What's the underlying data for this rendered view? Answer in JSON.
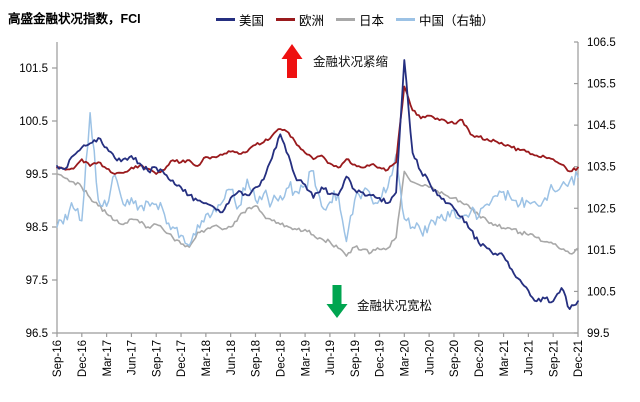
{
  "title": "高盛金融状况指数，FCI",
  "annotations": {
    "tighten": {
      "label": "金融状况紧缩",
      "arrow_color": "#ee1111",
      "arrow_direction": "up"
    },
    "ease": {
      "label": "金融状况宽松",
      "arrow_color": "#00a550",
      "arrow_direction": "down"
    }
  },
  "chart_data": {
    "type": "line",
    "title": "高盛金融状况指数，FCI",
    "x_labels": [
      "Sep-16",
      "Dec-16",
      "Mar-17",
      "Jun-17",
      "Sep-17",
      "Dec-17",
      "Mar-18",
      "Jun-18",
      "Sep-18",
      "Dec-18",
      "Mar-19",
      "Jun-19",
      "Sep-19",
      "Dec-19",
      "Mar-20",
      "Jun-20",
      "Sep-20",
      "Dec-20",
      "Mar-21",
      "Jun-21",
      "Sep-21",
      "Dec-21"
    ],
    "months_per_tick": 3,
    "grid": false,
    "legend_position": "top",
    "axes": {
      "left": {
        "ticks": [
          96.5,
          97.5,
          98.5,
          99.5,
          100.5,
          101.5
        ],
        "range": [
          96.5,
          102.0
        ]
      },
      "right": {
        "ticks": [
          99.5,
          100.5,
          101.5,
          102.5,
          103.5,
          104.5,
          105.5,
          106.5
        ],
        "range": [
          99.5,
          106.5
        ]
      }
    },
    "series": [
      {
        "name": "美国",
        "axis": "left",
        "color": "#252f80",
        "values": [
          99.65,
          99.6,
          99.85,
          100.0,
          100.08,
          100.18,
          100.0,
          99.8,
          99.78,
          99.84,
          99.7,
          99.56,
          99.62,
          99.5,
          99.38,
          99.25,
          99.1,
          99.0,
          98.95,
          98.87,
          98.78,
          99.05,
          99.18,
          99.1,
          99.25,
          99.4,
          99.8,
          100.25,
          99.85,
          99.38,
          99.3,
          99.05,
          99.25,
          99.12,
          99.1,
          99.45,
          99.2,
          99.15,
          99.1,
          99.05,
          98.95,
          99.15,
          101.65,
          99.9,
          99.55,
          99.35,
          99.1,
          98.95,
          98.85,
          98.7,
          98.45,
          98.2,
          98.1,
          98.0,
          97.95,
          97.7,
          97.5,
          97.3,
          97.1,
          97.15,
          97.1,
          97.35,
          96.95,
          97.1
        ]
      },
      {
        "name": "欧洲",
        "axis": "left",
        "color": "#9a1a1d",
        "values": [
          99.62,
          99.58,
          99.6,
          99.78,
          99.65,
          99.72,
          99.6,
          99.5,
          99.52,
          99.62,
          99.66,
          99.6,
          99.5,
          99.58,
          99.76,
          99.72,
          99.76,
          99.65,
          99.82,
          99.82,
          99.86,
          99.92,
          99.88,
          99.92,
          100.05,
          100.1,
          100.22,
          100.35,
          100.28,
          100.05,
          99.9,
          99.78,
          99.85,
          99.7,
          99.62,
          99.78,
          99.68,
          99.62,
          99.68,
          99.62,
          99.58,
          99.72,
          101.15,
          100.7,
          100.55,
          100.6,
          100.55,
          100.5,
          100.45,
          100.52,
          100.25,
          100.2,
          100.16,
          100.12,
          100.05,
          100.0,
          99.95,
          99.92,
          99.85,
          99.82,
          99.78,
          99.68,
          99.55,
          99.62
        ]
      },
      {
        "name": "日本",
        "axis": "left",
        "color": "#a8a8a8",
        "values": [
          99.5,
          99.42,
          99.35,
          99.25,
          99.05,
          98.9,
          98.75,
          98.62,
          98.55,
          98.65,
          98.58,
          98.5,
          98.55,
          98.42,
          98.3,
          98.18,
          98.12,
          98.4,
          98.45,
          98.52,
          98.45,
          98.5,
          98.7,
          98.85,
          98.9,
          98.72,
          98.62,
          98.55,
          98.5,
          98.45,
          98.45,
          98.35,
          98.28,
          98.22,
          98.1,
          97.95,
          98.12,
          98.08,
          98.02,
          98.08,
          98.1,
          98.3,
          99.55,
          99.35,
          99.28,
          99.25,
          99.18,
          99.1,
          99.05,
          98.95,
          98.85,
          98.72,
          98.62,
          98.55,
          98.48,
          98.45,
          98.4,
          98.35,
          98.3,
          98.22,
          98.18,
          98.08,
          98.0,
          98.1
        ]
      },
      {
        "name": "中国（右轴）",
        "axis": "right",
        "color": "#9cc2e5",
        "values": [
          102.05,
          102.35,
          102.5,
          102.2,
          104.8,
          102.7,
          102.55,
          103.3,
          102.6,
          102.75,
          102.55,
          102.65,
          102.6,
          102.35,
          102.05,
          101.85,
          101.6,
          102.1,
          102.35,
          102.5,
          102.65,
          102.95,
          102.55,
          103.2,
          102.7,
          102.85,
          102.65,
          102.8,
          103.0,
          102.9,
          103.05,
          103.4,
          102.55,
          102.65,
          102.85,
          101.7,
          102.7,
          102.9,
          102.75,
          102.7,
          103.0,
          103.8,
          102.25,
          102.05,
          101.95,
          102.1,
          102.3,
          102.2,
          102.45,
          102.3,
          102.4,
          102.3,
          102.6,
          102.8,
          102.9,
          102.7,
          102.6,
          102.65,
          102.6,
          102.75,
          102.95,
          103.05,
          103.15,
          103.25
        ]
      }
    ]
  },
  "style": {
    "axis_color": "#9a9a9a",
    "tick_text_color": "#000000",
    "noise_amps": [
      0.05,
      0.03,
      0.04,
      0.17
    ],
    "line_widths": [
      1.8,
      1.8,
      1.6,
      1.5
    ]
  }
}
